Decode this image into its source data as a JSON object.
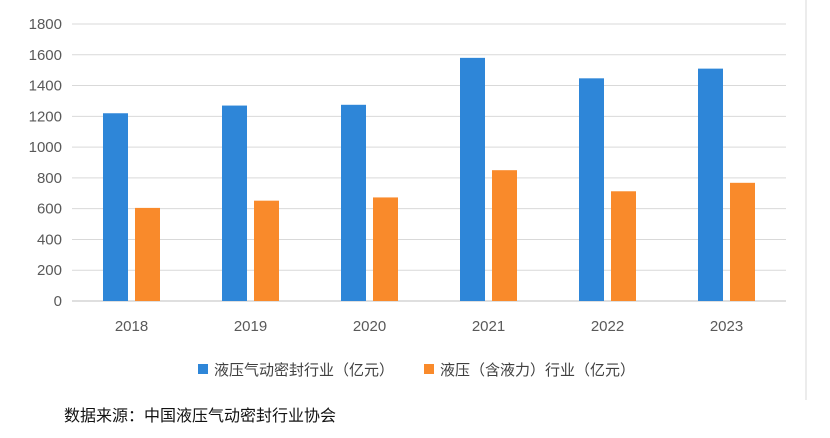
{
  "chart_data": {
    "type": "bar",
    "title": "",
    "xlabel": "",
    "ylabel": "",
    "categories": [
      "2018",
      "2019",
      "2020",
      "2021",
      "2022",
      "2023"
    ],
    "ylim": [
      0,
      1800
    ],
    "yticks": [
      0,
      200,
      400,
      600,
      800,
      1000,
      1200,
      1400,
      1600,
      1800
    ],
    "grid": true,
    "legend_position": "bottom",
    "series": [
      {
        "name": "液压气动密封行业（亿元）",
        "color": "#2e86d8",
        "values": [
          1220,
          1270,
          1275,
          1580,
          1447,
          1510
        ]
      },
      {
        "name": "液压（含液力）行业（亿元）",
        "color": "#f98a2b",
        "values": [
          605,
          652,
          673,
          850,
          713,
          768
        ]
      }
    ]
  },
  "source_note": "数据来源：中国液压气动密封行业协会"
}
